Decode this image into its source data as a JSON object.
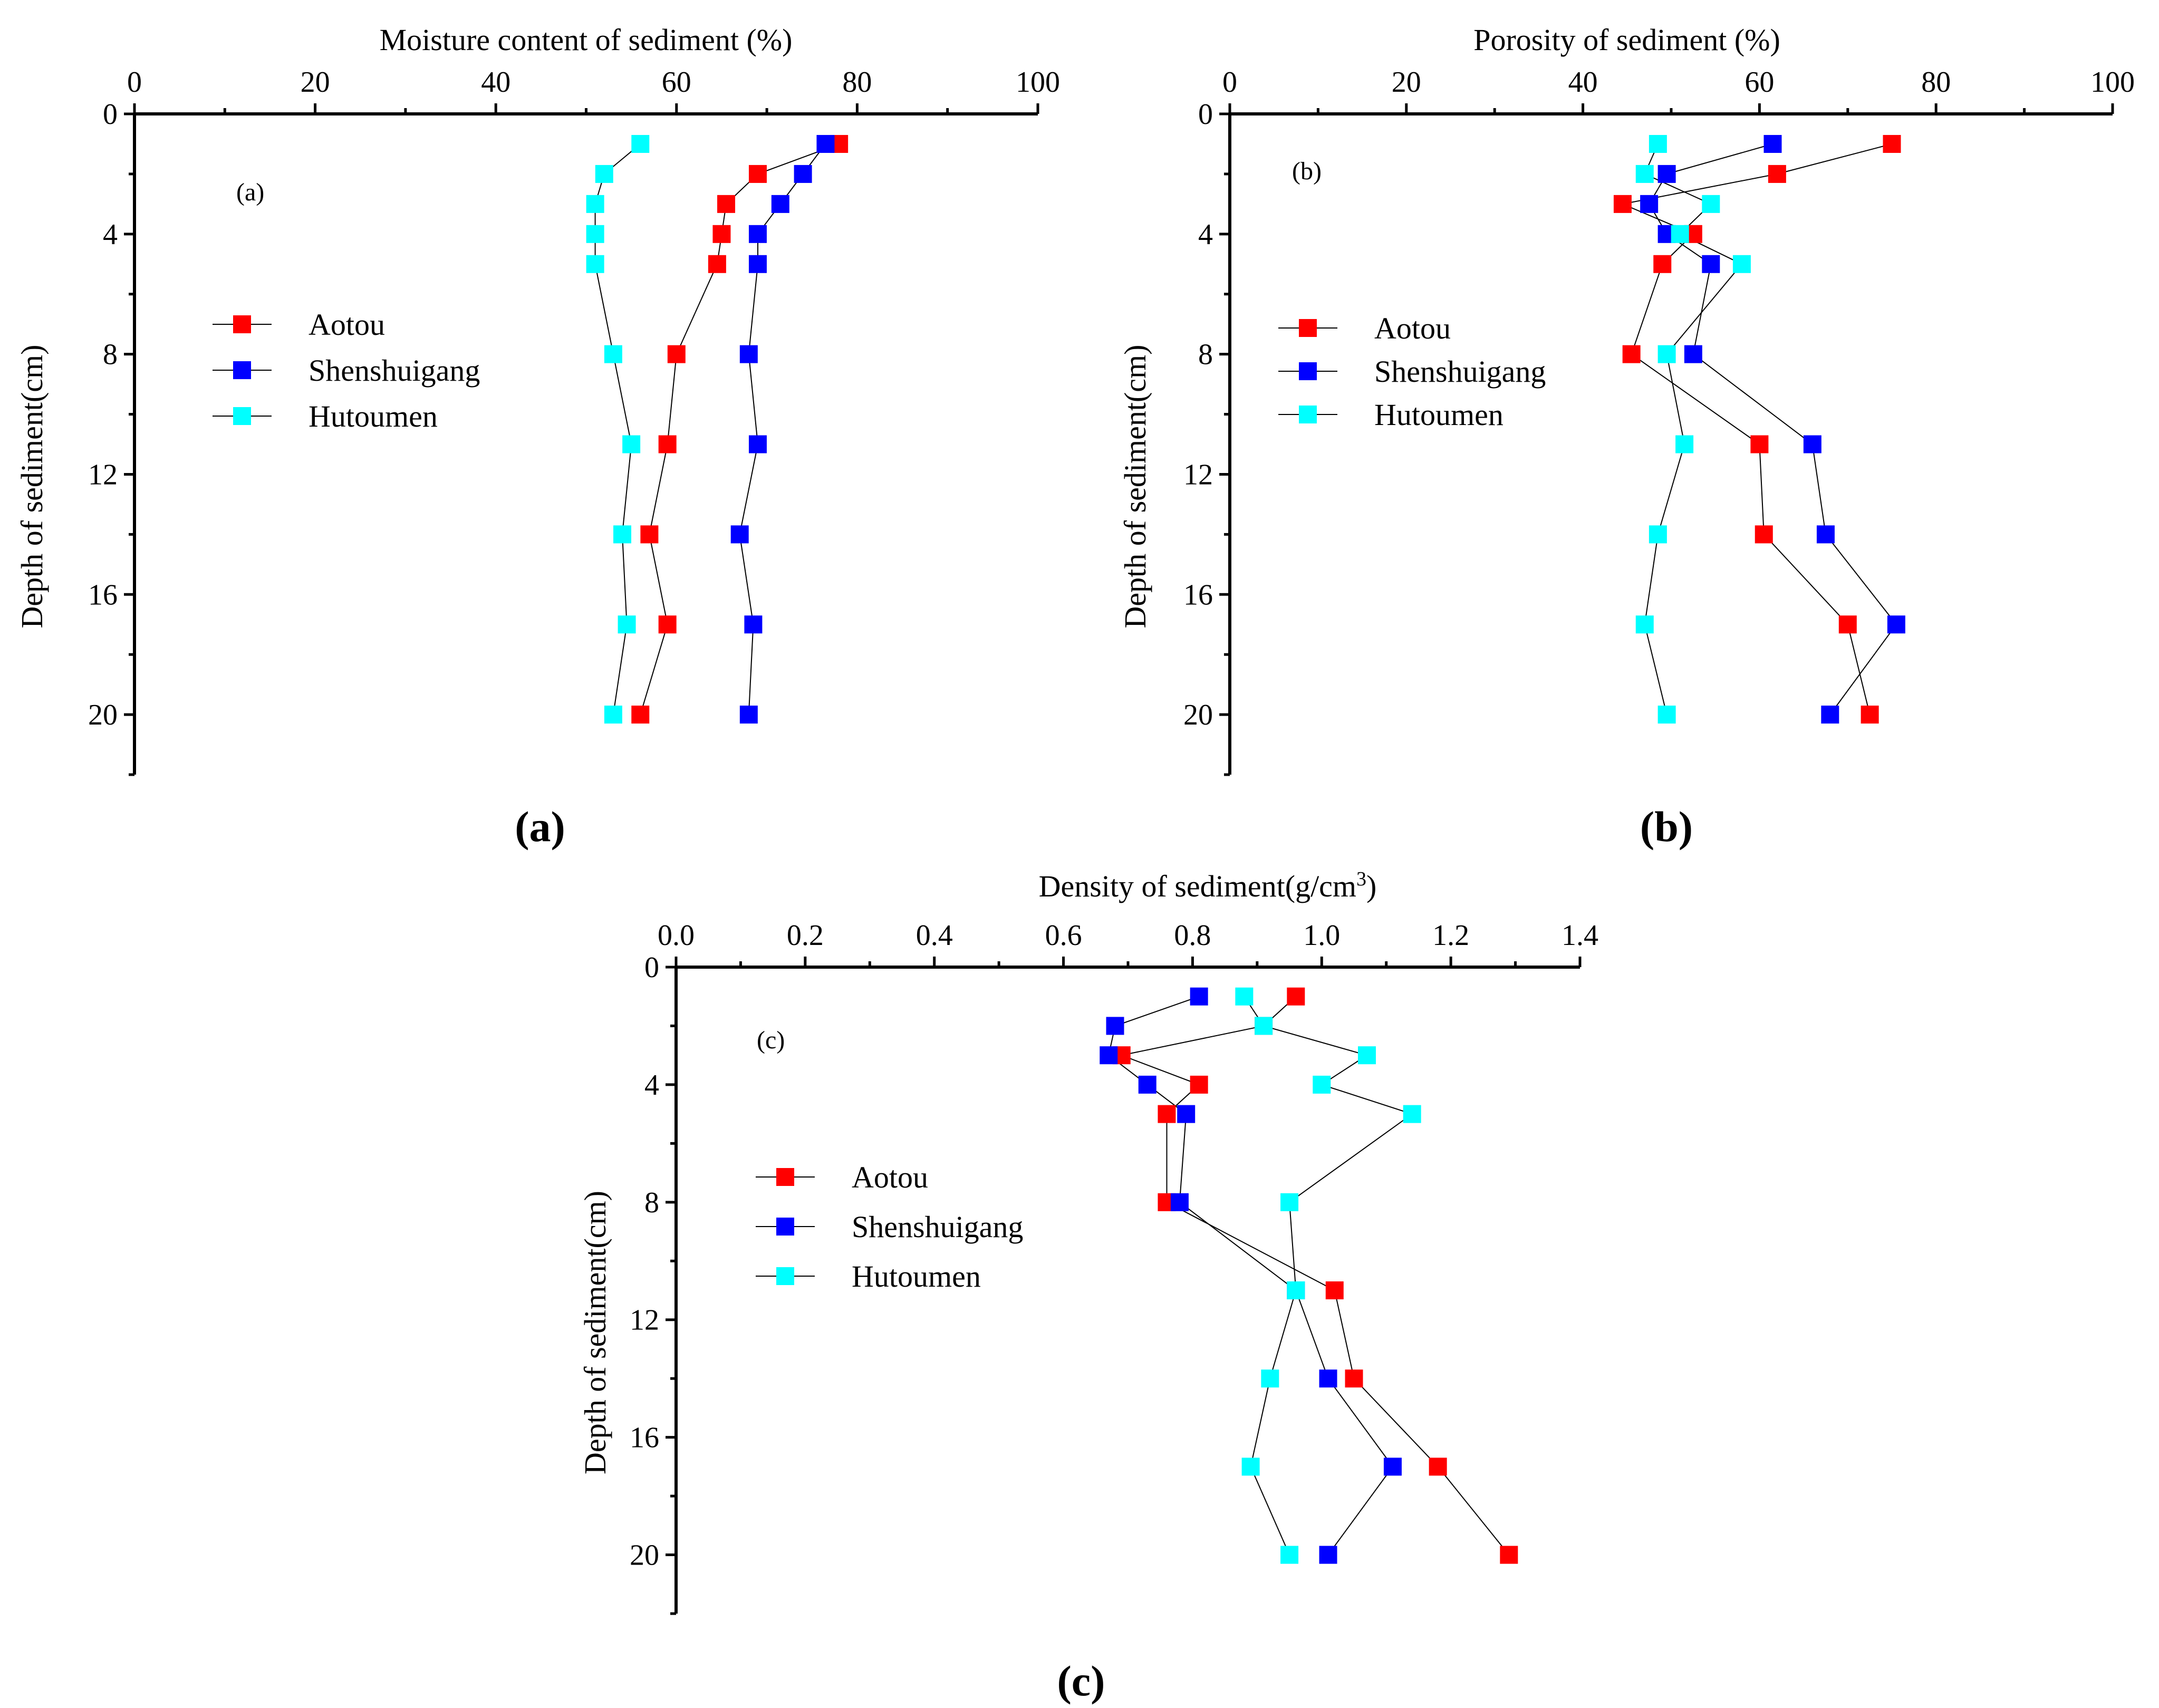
{
  "chart_data": [
    {
      "type": "line",
      "id": "a",
      "title": "",
      "xlabel": "Moisture content of sediment (%)",
      "ylabel": "Depth of sediment(cm)",
      "xlim": [
        0,
        100
      ],
      "ylim": [
        0,
        22
      ],
      "x_ticks": [
        "0",
        "20",
        "40",
        "60",
        "80",
        "100"
      ],
      "y_ticks": [
        "0",
        "4",
        "8",
        "12",
        "16",
        "20"
      ],
      "panel_tag": "(a)",
      "caption": "(a)",
      "series": [
        {
          "name": "Aotou",
          "color": "#ff0000",
          "depth": [
            1,
            2,
            3,
            4,
            5,
            8,
            11,
            14,
            17,
            20
          ],
          "values": [
            78,
            69,
            65.5,
            65,
            64.5,
            60,
            59,
            57,
            59,
            56
          ]
        },
        {
          "name": "Shenshuigang",
          "color": "#0000ff",
          "depth": [
            1,
            2,
            3,
            4,
            5,
            8,
            11,
            14,
            17,
            20
          ],
          "values": [
            76.5,
            74,
            71.5,
            69,
            69,
            68,
            69,
            67,
            68.5,
            68
          ]
        },
        {
          "name": "Hutoumen",
          "color": "#00ffff",
          "depth": [
            1,
            2,
            3,
            4,
            5,
            8,
            11,
            14,
            17,
            20
          ],
          "values": [
            56,
            52,
            51,
            51,
            51,
            53,
            55,
            54,
            54.5,
            53
          ]
        }
      ]
    },
    {
      "type": "line",
      "id": "b",
      "title": "",
      "xlabel": "Porosity of sediment (%)",
      "ylabel": "Depth of sediment(cm)",
      "xlim": [
        0,
        100
      ],
      "ylim": [
        0,
        22
      ],
      "x_ticks": [
        "0",
        "20",
        "40",
        "60",
        "80",
        "100"
      ],
      "y_ticks": [
        "0",
        "4",
        "8",
        "12",
        "16",
        "20"
      ],
      "panel_tag": "(b)",
      "caption": "(b)",
      "series": [
        {
          "name": "Aotou",
          "color": "#ff0000",
          "depth": [
            1,
            2,
            3,
            4,
            5,
            8,
            11,
            14,
            17,
            20
          ],
          "values": [
            75,
            62,
            44.5,
            52.5,
            49,
            45.5,
            60,
            60.5,
            70,
            72.5
          ]
        },
        {
          "name": "Shenshuigang",
          "color": "#0000ff",
          "depth": [
            1,
            2,
            3,
            4,
            5,
            8,
            11,
            14,
            17,
            20
          ],
          "values": [
            61.5,
            49.5,
            47.5,
            49.5,
            54.5,
            52.5,
            66,
            67.5,
            75.5,
            68
          ]
        },
        {
          "name": "Hutoumen",
          "color": "#00ffff",
          "depth": [
            1,
            2,
            3,
            4,
            5,
            8,
            11,
            14,
            17,
            20
          ],
          "values": [
            48.5,
            47,
            54.5,
            51,
            58,
            49.5,
            51.5,
            48.5,
            47,
            49.5
          ]
        }
      ]
    },
    {
      "type": "line",
      "id": "c",
      "title": "",
      "xlabel": "Density of sediment(g/cm",
      "xlabel_superscript": "3",
      "xlabel_suffix": ")",
      "ylabel": "Depth of sediment(cm)",
      "xlim": [
        0,
        1.4
      ],
      "ylim": [
        0,
        22
      ],
      "x_ticks": [
        "0.0",
        "0.2",
        "0.4",
        "0.6",
        "0.8",
        "1.0",
        "1.2",
        "1.4"
      ],
      "y_ticks": [
        "0",
        "4",
        "8",
        "12",
        "16",
        "20"
      ],
      "panel_tag": "(c)",
      "caption": "(c)",
      "series": [
        {
          "name": "Aotou",
          "color": "#ff0000",
          "depth": [
            1,
            2,
            3,
            4,
            5,
            8,
            11,
            14,
            17,
            20
          ],
          "values": [
            0.96,
            0.91,
            0.69,
            0.81,
            0.76,
            0.76,
            1.02,
            1.05,
            1.18,
            1.29
          ]
        },
        {
          "name": "Shenshuigang",
          "color": "#0000ff",
          "depth": [
            1,
            2,
            3,
            4,
            5,
            8,
            11,
            14,
            17,
            20
          ],
          "values": [
            0.81,
            0.68,
            0.67,
            0.73,
            0.79,
            0.78,
            0.96,
            1.01,
            1.11,
            1.01
          ]
        },
        {
          "name": "Hutoumen",
          "color": "#00ffff",
          "depth": [
            1,
            2,
            3,
            4,
            5,
            8,
            11,
            14,
            17,
            20
          ],
          "values": [
            0.88,
            0.91,
            1.07,
            1.0,
            1.14,
            0.95,
            0.96,
            0.92,
            0.89,
            0.95
          ]
        }
      ]
    }
  ]
}
